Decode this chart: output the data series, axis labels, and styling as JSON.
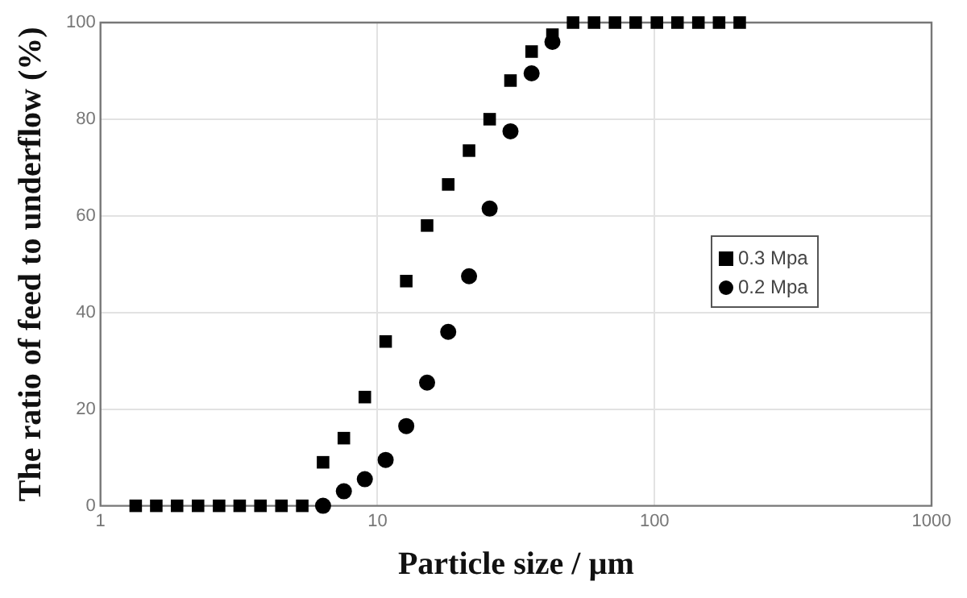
{
  "chart_data": {
    "type": "scatter",
    "xlabel": "Particle size / µm",
    "ylabel": "The ratio of feed to underflow (%)",
    "log": "x",
    "xlim": [
      1,
      1000
    ],
    "xticks": [
      1,
      10,
      100,
      1000
    ],
    "ylim": [
      0,
      100
    ],
    "yticks": [
      0,
      20,
      40,
      60,
      80,
      100
    ],
    "grid": true,
    "legend": "right",
    "x": [
      1.34,
      1.59,
      1.89,
      2.25,
      2.68,
      3.18,
      3.78,
      4.5,
      5.35,
      6.36,
      7.56,
      9.0,
      10.7,
      12.7,
      15.1,
      18.0,
      21.4,
      25.4,
      30.2,
      36.0,
      42.8,
      50.8,
      60.5,
      72,
      85.5,
      102,
      121,
      144,
      171,
      203
    ],
    "series": [
      {
        "name": "0.3 Mpa",
        "color": "#000000",
        "marker": "square",
        "values": [
          0,
          0,
          0,
          0,
          0,
          0,
          0,
          0,
          0,
          9,
          14,
          22.5,
          34,
          46.5,
          58,
          66.5,
          73.5,
          80,
          88,
          94,
          97.5,
          100,
          100,
          100,
          100,
          100,
          100,
          100,
          100,
          100
        ]
      },
      {
        "name": "0.2 Mpa",
        "color": "#000000",
        "marker": "circle",
        "values": [
          null,
          null,
          null,
          null,
          null,
          null,
          null,
          null,
          null,
          0,
          3,
          5.5,
          9.5,
          16.5,
          25.5,
          36,
          47.5,
          61.5,
          77.5,
          89.5,
          96,
          null,
          null,
          null,
          null,
          null,
          null,
          null,
          null,
          null
        ]
      }
    ]
  }
}
